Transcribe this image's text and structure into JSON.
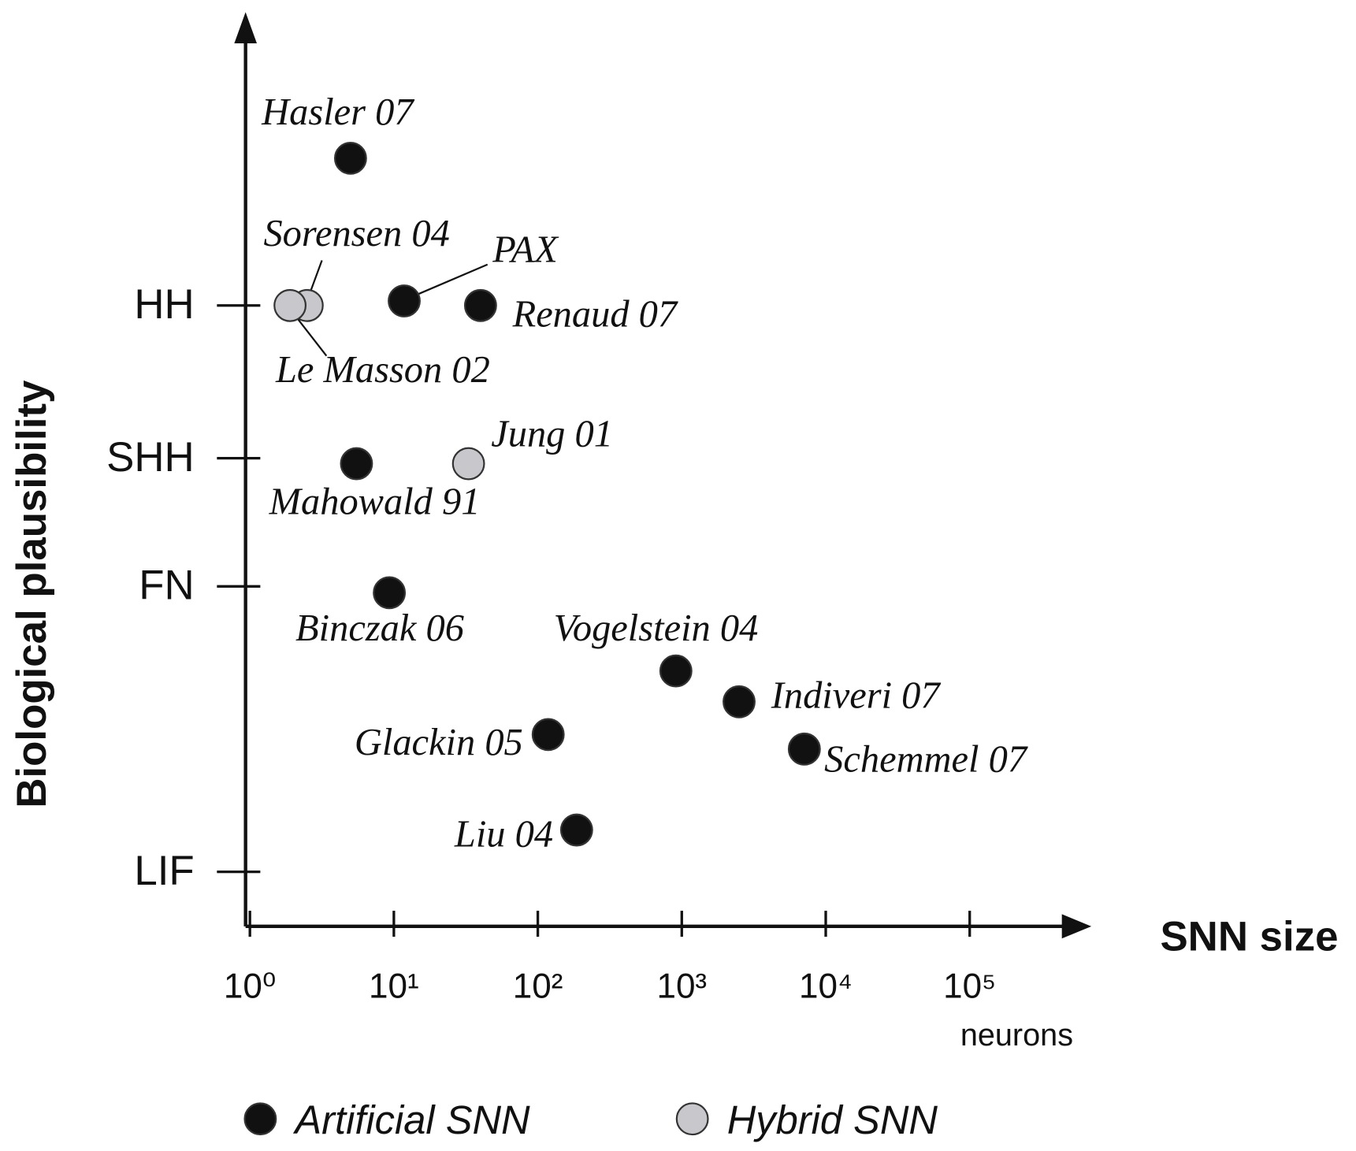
{
  "chart_data": {
    "type": "scatter",
    "x_label": "SNN size",
    "x_unit": "neurons",
    "y_label": "Biological plausibility",
    "log_x": true,
    "xlim": [
      1,
      700000
    ],
    "xticks": [
      {
        "value": 1,
        "label": "10⁰"
      },
      {
        "value": 10,
        "label": "10¹"
      },
      {
        "value": 100,
        "label": "10²"
      },
      {
        "value": 1000,
        "label": "10³"
      },
      {
        "value": 10000,
        "label": "10⁴"
      },
      {
        "value": 100000,
        "label": "10⁵"
      }
    ],
    "ylim": [
      0,
      100
    ],
    "yticks": [
      {
        "value": 6.0,
        "label": "LIF"
      },
      {
        "value": 37.4,
        "label": "FN"
      },
      {
        "value": 51.5,
        "label": "SHH"
      },
      {
        "value": 68.3,
        "label": "HH"
      }
    ],
    "legend": "bottom",
    "series": [
      {
        "name": "Artificial SNN",
        "color": "#111111",
        "labels": [
          "Hasler 07",
          "PAX",
          "Renaud 07",
          "Mahowald 91",
          "Binczak 06",
          "Vogelstein 04",
          "Indiveri 07",
          "Schemmel 07",
          "Glackin 05",
          "Liu 04"
        ],
        "x": [
          5.0,
          11.8,
          40,
          5.5,
          9.3,
          910,
          2500,
          7100,
          118,
          186
        ],
        "values": [
          84.5,
          68.8,
          68.3,
          50.9,
          36.7,
          28.1,
          24.7,
          19.5,
          21.1,
          10.6
        ]
      },
      {
        "name": "Hybrid SNN",
        "color": "#c8c8cc",
        "labels": [
          "Sorensen 04",
          "Le Masson 02",
          "Jung 01"
        ],
        "x": [
          2.5,
          1.9,
          33
        ],
        "values": [
          68.3,
          68.3,
          50.9
        ]
      }
    ]
  }
}
